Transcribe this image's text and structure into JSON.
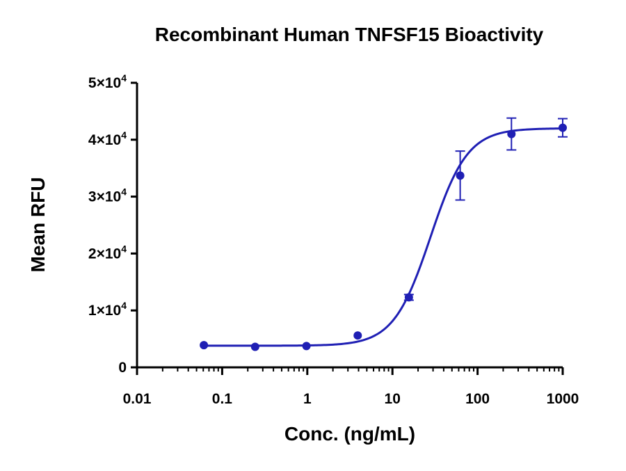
{
  "chart_data": {
    "type": "scatter",
    "title": "Recombinant Human TNFSF15 Bioactivity",
    "xlabel": "Conc. (ng/mL)",
    "ylabel": "Mean RFU",
    "x_scale": "log",
    "xlim": [
      0.01,
      1000
    ],
    "ylim": [
      0,
      50000
    ],
    "x_ticks": [
      0.01,
      0.1,
      1,
      10,
      100,
      1000
    ],
    "x_tick_labels": [
      "0.01",
      "0.1",
      "1",
      "10",
      "100",
      "1000"
    ],
    "y_ticks": [
      0,
      10000,
      20000,
      30000,
      40000,
      50000
    ],
    "y_tick_labels": [
      {
        "mantissa": "0",
        "exp": ""
      },
      {
        "mantissa": "1×10",
        "exp": "4"
      },
      {
        "mantissa": "2×10",
        "exp": "4"
      },
      {
        "mantissa": "3×10",
        "exp": "4"
      },
      {
        "mantissa": "4×10",
        "exp": "4"
      },
      {
        "mantissa": "5×10",
        "exp": "4"
      }
    ],
    "grid": false,
    "legend": "none",
    "color": "#1f1fb4",
    "points": [
      {
        "x": 0.061,
        "y": 3900,
        "err": 0
      },
      {
        "x": 0.244,
        "y": 3600,
        "err": 0
      },
      {
        "x": 0.977,
        "y": 3750,
        "err": 0
      },
      {
        "x": 3.91,
        "y": 5600,
        "err": 0
      },
      {
        "x": 15.6,
        "y": 12300,
        "err": 500
      },
      {
        "x": 62.5,
        "y": 33700,
        "err": 4300
      },
      {
        "x": 250,
        "y": 41000,
        "err": 2800
      },
      {
        "x": 1000,
        "y": 42100,
        "err": 1600
      }
    ],
    "fit": {
      "model": "4PL",
      "bottom": 3800,
      "top": 42000,
      "ec50": 28,
      "hill": 2.0
    }
  }
}
